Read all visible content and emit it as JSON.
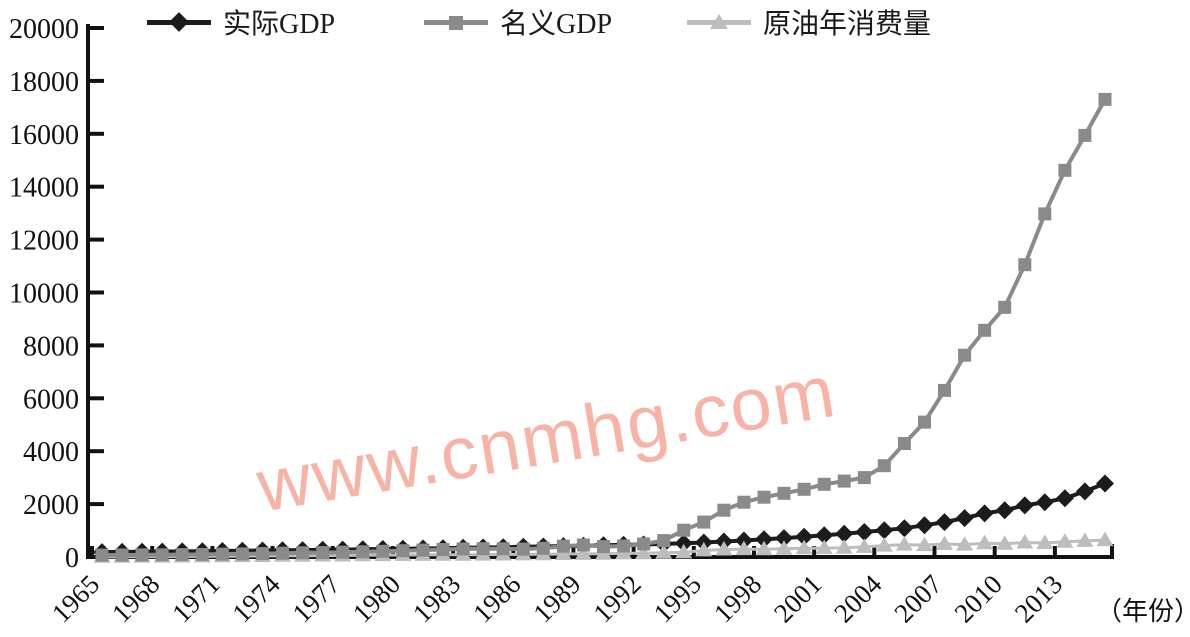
{
  "watermark": {
    "text": "www.cnmhg.com",
    "color": "#f5a191"
  },
  "axis_note": "（年份）",
  "chart_data": {
    "type": "line",
    "title": "",
    "xlabel": "（年份）",
    "ylabel": "",
    "ylim": [
      0,
      20000
    ],
    "grid": false,
    "legend_position": "top",
    "y_ticks": [
      0,
      2000,
      4000,
      6000,
      8000,
      10000,
      12000,
      14000,
      16000,
      18000,
      20000
    ],
    "x_tick_years": [
      1965,
      1968,
      1971,
      1974,
      1977,
      1980,
      1983,
      1986,
      1989,
      1992,
      1995,
      1998,
      2001,
      2004,
      2007,
      2010,
      2013
    ],
    "x": [
      1965,
      1966,
      1967,
      1968,
      1969,
      1970,
      1971,
      1972,
      1973,
      1974,
      1975,
      1976,
      1977,
      1978,
      1979,
      1980,
      1981,
      1982,
      1983,
      1984,
      1985,
      1986,
      1987,
      1988,
      1989,
      1990,
      1991,
      1992,
      1993,
      1994,
      1995,
      1996,
      1997,
      1998,
      1999,
      2000,
      2001,
      2002,
      2003,
      2004,
      2005,
      2006,
      2007,
      2008,
      2009,
      2010,
      2011,
      2012,
      2013,
      2014,
      2015
    ],
    "draw_order": [
      0,
      2,
      1
    ],
    "series": [
      {
        "id": "real-gdp",
        "name": "实际GDP",
        "marker": "diamond",
        "color": "#1c1c1c",
        "line_width": 4,
        "values": [
          185,
          191,
          198,
          205,
          212,
          220,
          228,
          236,
          244,
          253,
          262,
          271,
          281,
          291,
          301,
          312,
          323,
          334,
          346,
          358,
          371,
          384,
          398,
          412,
          427,
          442,
          458,
          474,
          495,
          520,
          550,
          585,
          625,
          670,
          715,
          765,
          820,
          880,
          945,
          1015,
          1090,
          1200,
          1320,
          1470,
          1650,
          1770,
          1950,
          2070,
          2220,
          2480,
          2780
        ]
      },
      {
        "id": "nominal-gdp",
        "name": "名义GDP",
        "marker": "square",
        "color": "#8a8a8a",
        "line_width": 4,
        "values": [
          70,
          74,
          78,
          84,
          90,
          98,
          108,
          118,
          130,
          144,
          160,
          168,
          180,
          195,
          215,
          240,
          262,
          285,
          305,
          315,
          310,
          300,
          330,
          410,
          455,
          395,
          415,
          490,
          620,
          1015,
          1320,
          1770,
          2070,
          2260,
          2410,
          2560,
          2750,
          2870,
          3000,
          3450,
          4290,
          5100,
          6300,
          7630,
          8570,
          9440,
          11050,
          12970,
          14620,
          15940,
          17300
        ]
      },
      {
        "id": "oil-consumption",
        "name": "原油年消费量",
        "marker": "triangle",
        "color": "#bdbdbd",
        "line_width": 3,
        "values": [
          10,
          12,
          14,
          17,
          20,
          24,
          28,
          33,
          38,
          44,
          48,
          52,
          58,
          64,
          70,
          76,
          80,
          84,
          88,
          92,
          96,
          100,
          106,
          112,
          118,
          124,
          135,
          145,
          158,
          175,
          250,
          285,
          300,
          290,
          310,
          330,
          335,
          350,
          380,
          430,
          470,
          450,
          490,
          470,
          520,
          500,
          550,
          530,
          580,
          610,
          640
        ]
      }
    ]
  }
}
